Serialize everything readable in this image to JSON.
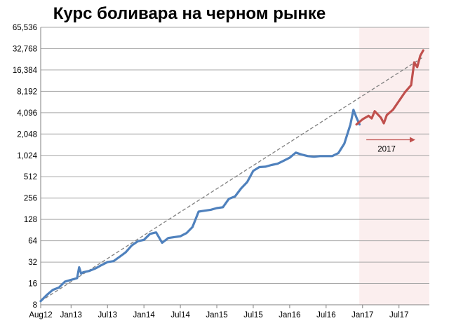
{
  "chart_data": {
    "type": "line",
    "title": "Курс боливара на черном рынке",
    "xlabel": "",
    "ylabel": "",
    "y_scale": "log2",
    "ylim": [
      8,
      65536
    ],
    "xlim": [
      "2012-08",
      "2017-12"
    ],
    "grid": "horizontal",
    "y_ticks": [
      8,
      16,
      32,
      64,
      128,
      256,
      512,
      1024,
      2048,
      4096,
      8192,
      16384,
      32768,
      65536
    ],
    "y_tick_labels": [
      "8",
      "16",
      "32",
      "64",
      "128",
      "256",
      "512",
      "1,024",
      "2,048",
      "4,096",
      "8,192",
      "16,384",
      "32,768",
      "65,536"
    ],
    "x_ticks": [
      "2012-08",
      "2013-01",
      "2013-07",
      "2014-01",
      "2014-07",
      "2015-01",
      "2015-07",
      "2016-01",
      "2016-07",
      "2017-01",
      "2017-07"
    ],
    "x_tick_labels": [
      "Aug12",
      "Jan13",
      "Jul13",
      "Jan14",
      "Jul14",
      "Jan15",
      "Jul15",
      "Jan16",
      "Jul16",
      "Jan17",
      "Jul17"
    ],
    "highlight_region": {
      "from": "2016-12",
      "to": "2017-12",
      "color": "#fbeeee"
    },
    "annotation": {
      "text": "2017",
      "color": "#c0504d"
    },
    "trend": {
      "color": "#808080",
      "points": [
        [
          "2012-08",
          9
        ],
        [
          "2017-11",
          25000
        ]
      ]
    },
    "series": [
      {
        "color": "#4f81bd",
        "points": [
          [
            "2012-08",
            9
          ],
          [
            "2012-09",
            11
          ],
          [
            "2012-10",
            13
          ],
          [
            "2012-11",
            14
          ],
          [
            "2012-12",
            17
          ],
          [
            "2013-01",
            18
          ],
          [
            "2013-02",
            19
          ],
          [
            "2013-02",
            27
          ],
          [
            "2013-02",
            22
          ],
          [
            "2013-03",
            23
          ],
          [
            "2013-04",
            24
          ],
          [
            "2013-05",
            26
          ],
          [
            "2013-06",
            29
          ],
          [
            "2013-07",
            32
          ],
          [
            "2013-08",
            33
          ],
          [
            "2013-09",
            38
          ],
          [
            "2013-10",
            44
          ],
          [
            "2013-11",
            55
          ],
          [
            "2013-12",
            63
          ],
          [
            "2014-01",
            66
          ],
          [
            "2014-02",
            80
          ],
          [
            "2014-03",
            84
          ],
          [
            "2014-04",
            60
          ],
          [
            "2014-05",
            70
          ],
          [
            "2014-06",
            72
          ],
          [
            "2014-07",
            74
          ],
          [
            "2014-08",
            82
          ],
          [
            "2014-09",
            100
          ],
          [
            "2014-10",
            165
          ],
          [
            "2014-11",
            170
          ],
          [
            "2014-12",
            175
          ],
          [
            "2015-01",
            185
          ],
          [
            "2015-02",
            190
          ],
          [
            "2015-03",
            250
          ],
          [
            "2015-04",
            270
          ],
          [
            "2015-05",
            350
          ],
          [
            "2015-06",
            430
          ],
          [
            "2015-07",
            620
          ],
          [
            "2015-08",
            700
          ],
          [
            "2015-09",
            710
          ],
          [
            "2015-10",
            750
          ],
          [
            "2015-11",
            780
          ],
          [
            "2015-12",
            860
          ],
          [
            "2016-01",
            950
          ],
          [
            "2016-02",
            1120
          ],
          [
            "2016-03",
            1050
          ],
          [
            "2016-04",
            1000
          ],
          [
            "2016-05",
            980
          ],
          [
            "2016-06",
            1000
          ],
          [
            "2016-07",
            1000
          ],
          [
            "2016-08",
            1000
          ],
          [
            "2016-09",
            1100
          ],
          [
            "2016-10",
            1500
          ],
          [
            "2016-11",
            2800
          ],
          [
            "2016-11",
            4500
          ],
          [
            "2016-12",
            3500
          ],
          [
            "2016-12",
            2800
          ]
        ]
      },
      {
        "color": "#c0504d",
        "points": [
          [
            "2016-12",
            2800
          ],
          [
            "2017-01",
            3300
          ],
          [
            "2017-02",
            3700
          ],
          [
            "2017-02",
            3400
          ],
          [
            "2017-03",
            4300
          ],
          [
            "2017-04",
            3500
          ],
          [
            "2017-04",
            2900
          ],
          [
            "2017-05",
            3800
          ],
          [
            "2017-06",
            4500
          ],
          [
            "2017-07",
            6000
          ],
          [
            "2017-08",
            8000
          ],
          [
            "2017-09",
            10000
          ],
          [
            "2017-09",
            21000
          ],
          [
            "2017-10",
            18000
          ],
          [
            "2017-10",
            26000
          ],
          [
            "2017-11",
            31000
          ]
        ]
      }
    ]
  }
}
